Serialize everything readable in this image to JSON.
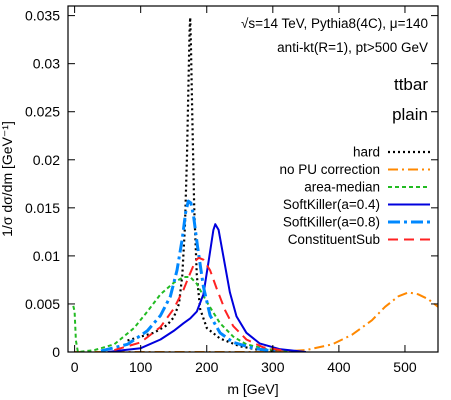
{
  "chart_data": {
    "type": "line",
    "xlabel": "m [GeV]",
    "ylabel": "1/σ dσ/dm [GeV⁻¹]",
    "xlim": [
      -10,
      550
    ],
    "ylim": [
      0,
      0.036
    ],
    "xticks": [
      0,
      100,
      200,
      300,
      400,
      500
    ],
    "yticks": [
      0,
      0.005,
      0.01,
      0.015,
      0.02,
      0.025,
      0.03,
      0.035
    ],
    "ytick_labels": [
      "0",
      "0.005",
      "0.01",
      "0.015",
      "0.02",
      "0.025",
      "0.03",
      "0.035"
    ],
    "annotations": {
      "line1": "√s=14 TeV, Pythia8(4C), μ=140",
      "line2": "anti-kt(R=1), pt>500 GeV",
      "sample": "ttbar",
      "mode": "plain"
    },
    "legend_position": "right",
    "series": [
      {
        "name": "hard",
        "color": "#000000",
        "dash": "2,3",
        "width": 2.2,
        "points": [
          [
            80,
            0.0012
          ],
          [
            100,
            0.0016
          ],
          [
            120,
            0.002
          ],
          [
            140,
            0.0028
          ],
          [
            150,
            0.0036
          ],
          [
            158,
            0.005
          ],
          [
            163,
            0.008
          ],
          [
            167,
            0.013
          ],
          [
            170,
            0.02
          ],
          [
            172,
            0.027
          ],
          [
            174,
            0.0335
          ],
          [
            175,
            0.0348
          ],
          [
            176,
            0.032
          ],
          [
            178,
            0.025
          ],
          [
            181,
            0.015
          ],
          [
            185,
            0.008
          ],
          [
            190,
            0.0045
          ],
          [
            200,
            0.0025
          ],
          [
            220,
            0.0014
          ],
          [
            250,
            0.0006
          ],
          [
            280,
            0.0002
          ],
          [
            320,
            0.0
          ]
        ]
      },
      {
        "name": "no PU correction",
        "color": "#ff8800",
        "dash": "10,4,2,4",
        "width": 2,
        "points": [
          [
            0,
            0.0
          ],
          [
            300,
            0.0
          ],
          [
            350,
            0.0002
          ],
          [
            390,
            0.0008
          ],
          [
            420,
            0.0018
          ],
          [
            450,
            0.0033
          ],
          [
            470,
            0.0047
          ],
          [
            490,
            0.0058
          ],
          [
            505,
            0.0062
          ],
          [
            520,
            0.006
          ],
          [
            535,
            0.0055
          ],
          [
            550,
            0.0047
          ]
        ]
      },
      {
        "name": "area-median",
        "color": "#22bb22",
        "dash": "4,3",
        "width": 2,
        "points": [
          [
            -2,
            0.0048
          ],
          [
            0,
            0.0042
          ],
          [
            2,
            0.0012
          ],
          [
            5,
            0.0
          ],
          [
            30,
            0.0002
          ],
          [
            60,
            0.0008
          ],
          [
            90,
            0.0025
          ],
          [
            110,
            0.0042
          ],
          [
            130,
            0.006
          ],
          [
            150,
            0.0072
          ],
          [
            165,
            0.0078
          ],
          [
            175,
            0.0078
          ],
          [
            185,
            0.0071
          ],
          [
            200,
            0.0052
          ],
          [
            220,
            0.003
          ],
          [
            240,
            0.0016
          ],
          [
            260,
            0.0008
          ],
          [
            290,
            0.0003
          ],
          [
            330,
            0.0001
          ]
        ]
      },
      {
        "name": "SoftKiller(a=0.4)",
        "color": "#0000dd",
        "dash": "",
        "width": 2,
        "points": [
          [
            50,
            0.0
          ],
          [
            100,
            0.0004
          ],
          [
            130,
            0.0013
          ],
          [
            150,
            0.0022
          ],
          [
            165,
            0.003
          ],
          [
            175,
            0.0035
          ],
          [
            185,
            0.0042
          ],
          [
            195,
            0.006
          ],
          [
            203,
            0.0095
          ],
          [
            210,
            0.0127
          ],
          [
            213,
            0.0133
          ],
          [
            218,
            0.0127
          ],
          [
            225,
            0.01
          ],
          [
            235,
            0.0062
          ],
          [
            245,
            0.0037
          ],
          [
            260,
            0.002
          ],
          [
            280,
            0.0009
          ],
          [
            310,
            0.0003
          ],
          [
            350,
            0.0
          ]
        ]
      },
      {
        "name": "SoftKiller(a=0.8)",
        "color": "#0088ff",
        "dash": "12,4,3,4",
        "width": 3,
        "points": [
          [
            40,
            0.0001
          ],
          [
            80,
            0.0008
          ],
          [
            110,
            0.0022
          ],
          [
            130,
            0.0038
          ],
          [
            145,
            0.0058
          ],
          [
            155,
            0.0085
          ],
          [
            163,
            0.0118
          ],
          [
            168,
            0.0145
          ],
          [
            172,
            0.0157
          ],
          [
            176,
            0.0155
          ],
          [
            180,
            0.0142
          ],
          [
            186,
            0.011
          ],
          [
            195,
            0.0068
          ],
          [
            205,
            0.0038
          ],
          [
            220,
            0.002
          ],
          [
            240,
            0.001
          ],
          [
            270,
            0.0004
          ],
          [
            310,
            0.0
          ]
        ]
      },
      {
        "name": "ConstituentSub",
        "color": "#ff2222",
        "dash": "10,6",
        "width": 2,
        "points": [
          [
            60,
            0.0002
          ],
          [
            100,
            0.001
          ],
          [
            130,
            0.0026
          ],
          [
            150,
            0.0045
          ],
          [
            165,
            0.0065
          ],
          [
            175,
            0.0082
          ],
          [
            183,
            0.0095
          ],
          [
            188,
            0.0098
          ],
          [
            195,
            0.0096
          ],
          [
            205,
            0.0085
          ],
          [
            215,
            0.0066
          ],
          [
            228,
            0.0043
          ],
          [
            240,
            0.0027
          ],
          [
            260,
            0.0013
          ],
          [
            285,
            0.0005
          ],
          [
            320,
            0.0001
          ]
        ]
      }
    ]
  }
}
